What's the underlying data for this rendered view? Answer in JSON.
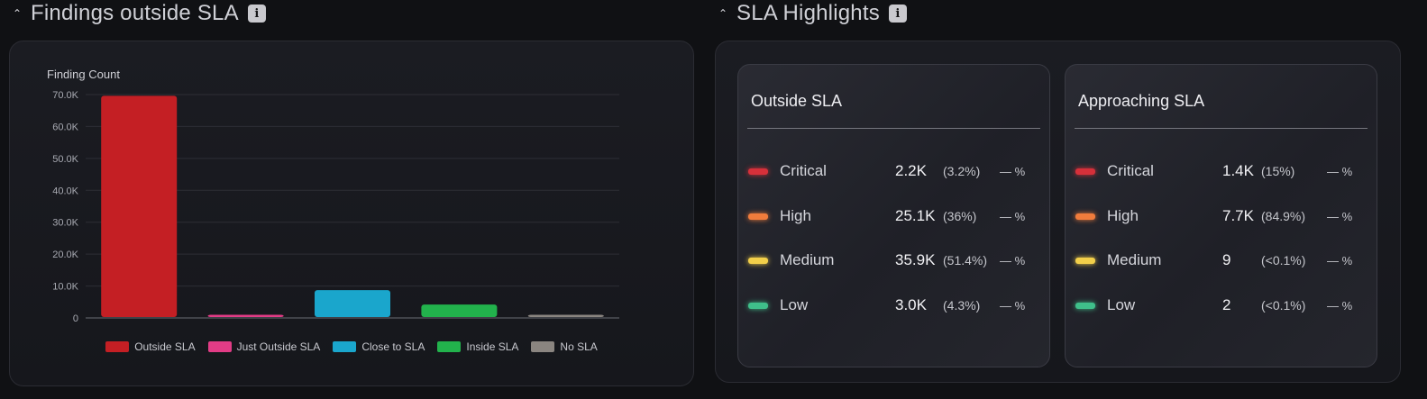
{
  "left_section": {
    "title": "Findings outside SLA",
    "info": "i"
  },
  "right_section": {
    "title": "SLA Highlights",
    "info": "i"
  },
  "chart_data": {
    "type": "bar",
    "ylabel": "Finding Count",
    "ylim": [
      0,
      70000
    ],
    "ytick_values": [
      0,
      10000,
      20000,
      30000,
      40000,
      50000,
      60000,
      70000
    ],
    "ytick_labels": [
      "0",
      "10.0K",
      "20.0K",
      "30.0K",
      "40.0K",
      "50.0K",
      "60.0K",
      "70.0K"
    ],
    "categories": [
      "Outside SLA",
      "Just Outside SLA",
      "Close to SLA",
      "Inside SLA",
      "No SLA"
    ],
    "values": [
      69600,
      900,
      8700,
      4200,
      900
    ],
    "colors": [
      "#c41f24",
      "#e23c86",
      "#1aa6cc",
      "#22b24c",
      "#8a8580"
    ],
    "legend_position": "bottom",
    "grid": true
  },
  "cards": [
    {
      "title": "Outside SLA",
      "rows": [
        {
          "label": "Critical",
          "count": "2.2K",
          "pct": "(3.2%)",
          "trend": "— %",
          "color": "#d6303a"
        },
        {
          "label": "High",
          "count": "25.1K",
          "pct": "(36%)",
          "trend": "— %",
          "color": "#f07c3c"
        },
        {
          "label": "Medium",
          "count": "35.9K",
          "pct": "(51.4%)",
          "trend": "— %",
          "color": "#f2cf4a"
        },
        {
          "label": "Low",
          "count": "3.0K",
          "pct": "(4.3%)",
          "trend": "— %",
          "color": "#3fbf8a"
        }
      ]
    },
    {
      "title": "Approaching SLA",
      "rows": [
        {
          "label": "Critical",
          "count": "1.4K",
          "pct": "(15%)",
          "trend": "— %",
          "color": "#d6303a"
        },
        {
          "label": "High",
          "count": "7.7K",
          "pct": "(84.9%)",
          "trend": "— %",
          "color": "#f07c3c"
        },
        {
          "label": "Medium",
          "count": "9",
          "pct": "(<0.1%)",
          "trend": "— %",
          "color": "#f2cf4a"
        },
        {
          "label": "Low",
          "count": "2",
          "pct": "(<0.1%)",
          "trend": "— %",
          "color": "#3fbf8a"
        }
      ]
    }
  ],
  "icons": {
    "collapse": "chevron-up-icon",
    "info": "info-icon"
  }
}
